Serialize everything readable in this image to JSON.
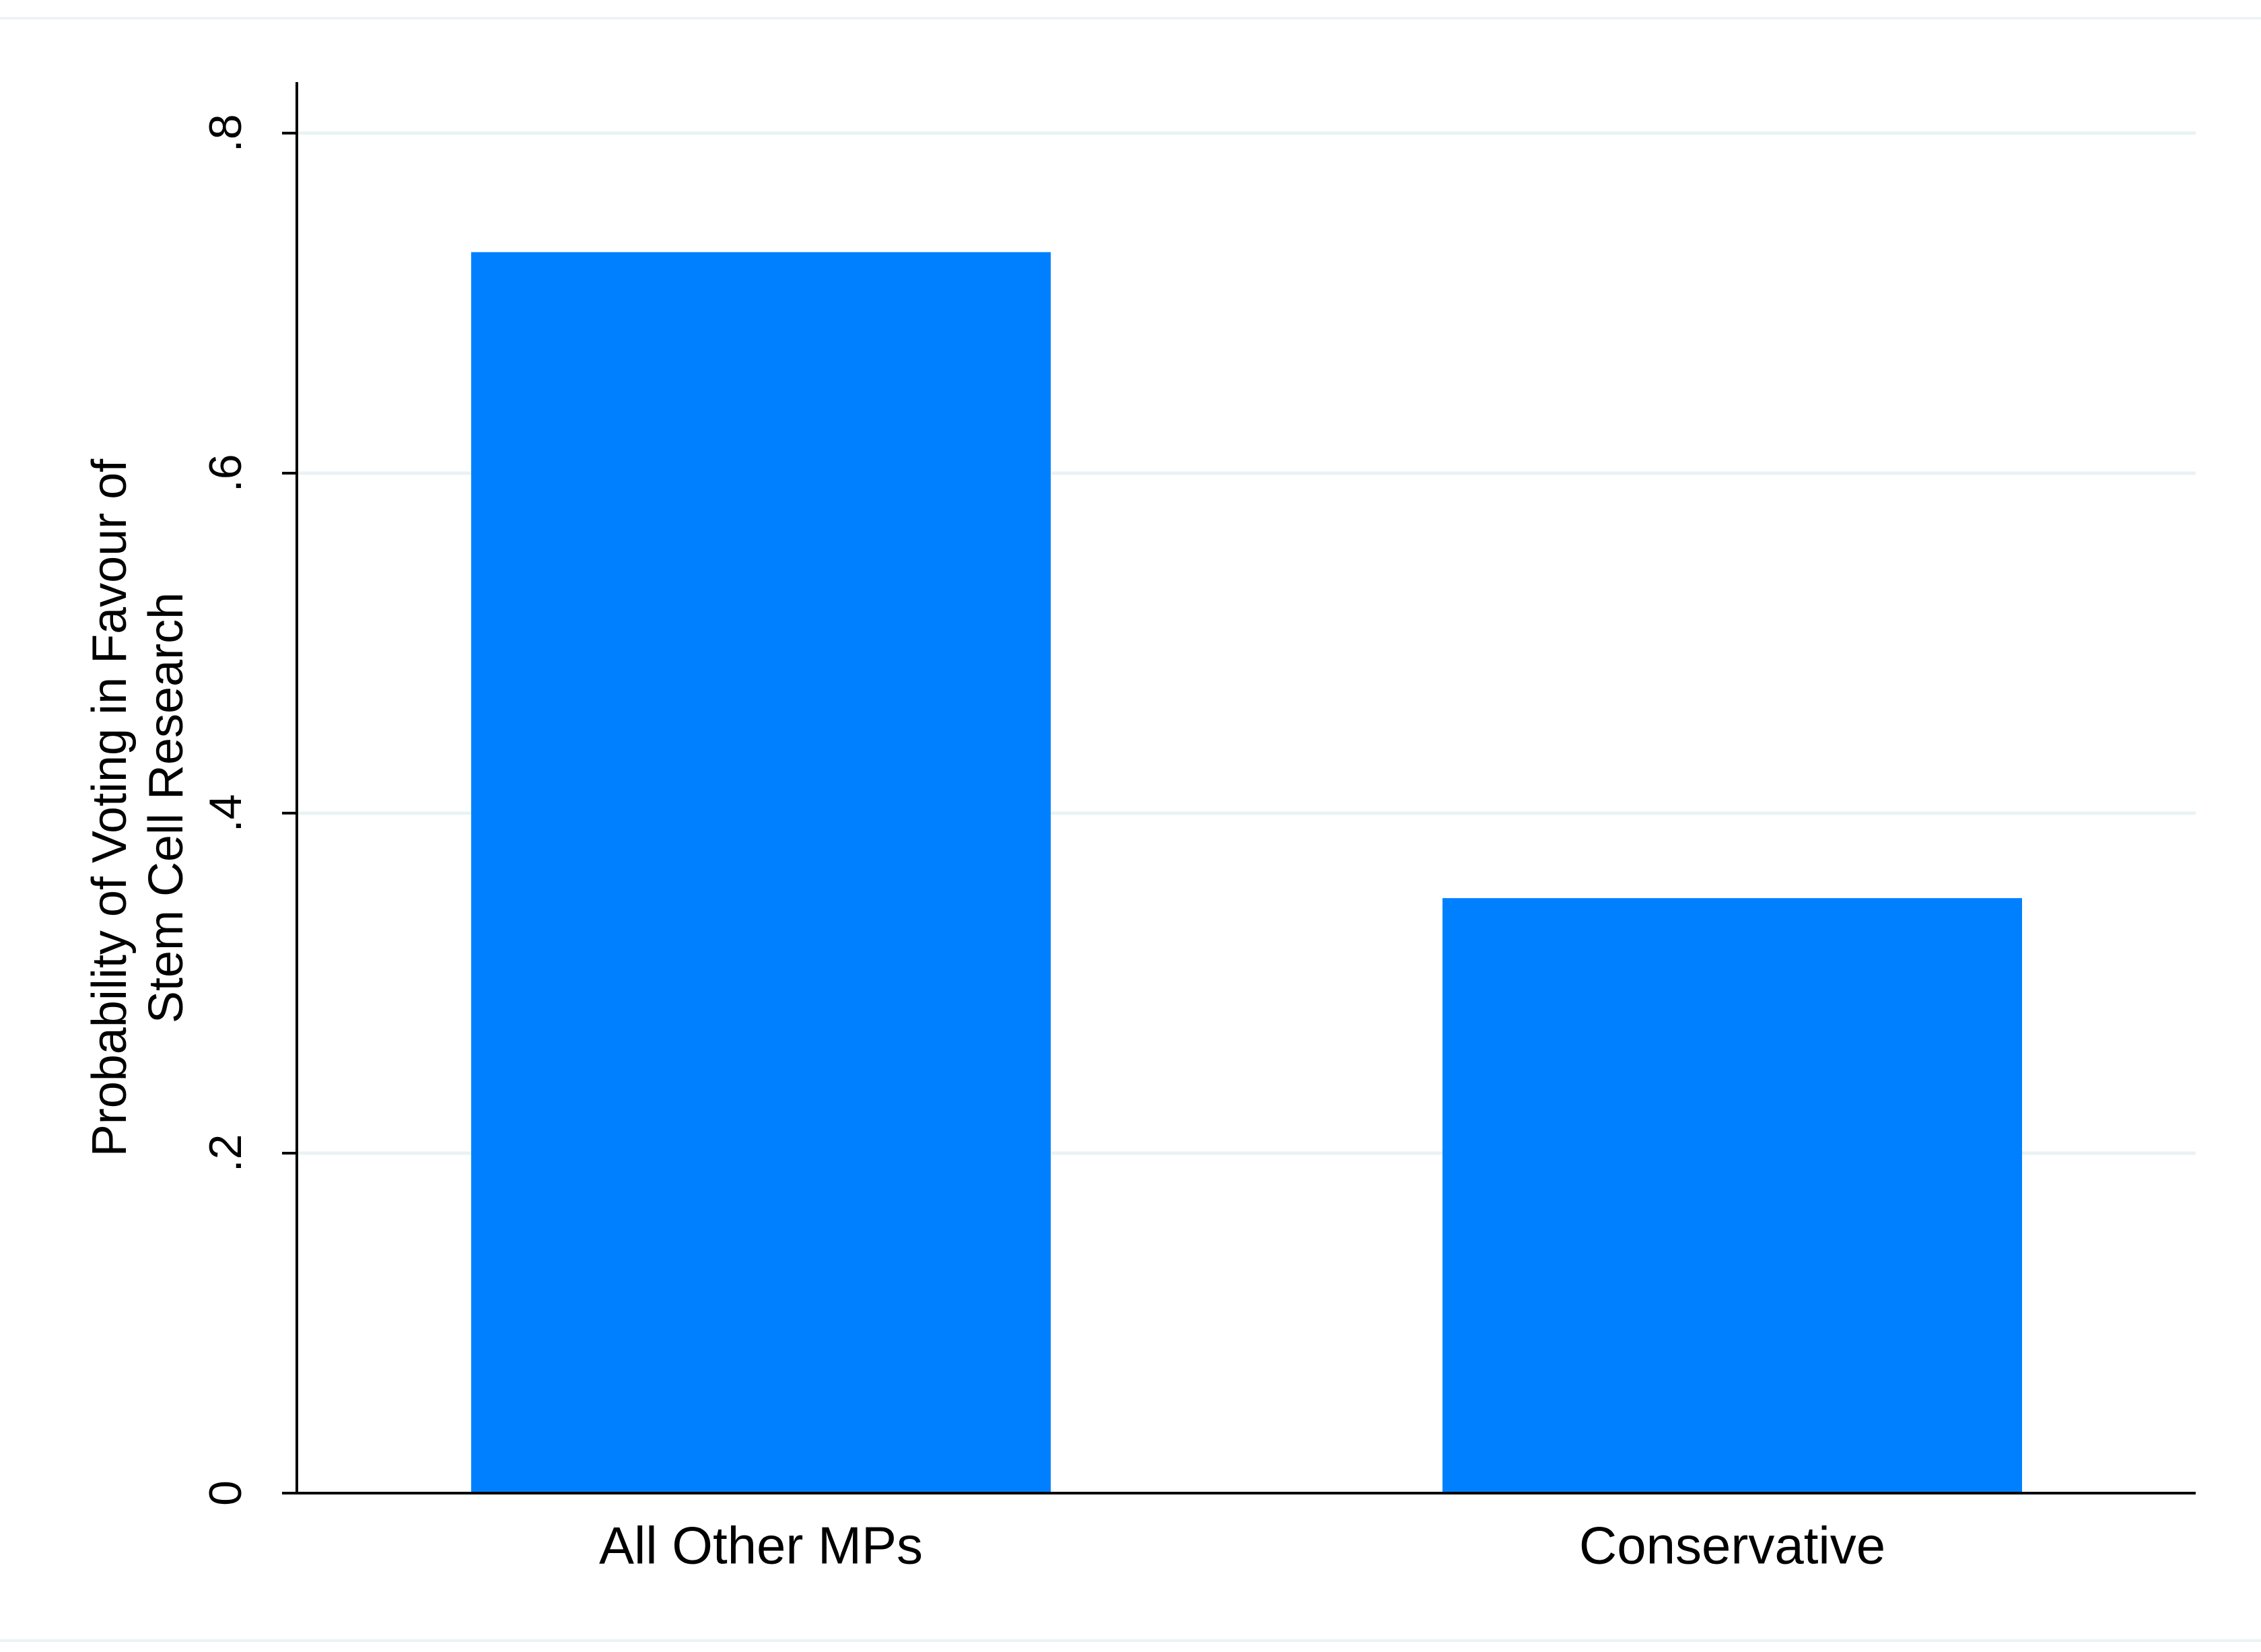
{
  "chart_data": {
    "type": "bar",
    "y_label": [
      "Probability of Voting in Favour of",
      "Stem Cell Research"
    ],
    "categories": [
      "All Other MPs",
      "Conservative"
    ],
    "values": [
      0.73,
      0.35
    ],
    "color": "#0080ff",
    "ylim": [
      0,
      0.83
    ],
    "yticks": [
      0,
      {
        "value": 0.2,
        "label": ".2"
      },
      {
        "value": 0.4,
        "label": ".4"
      },
      {
        "value": 0.6,
        "label": ".6"
      },
      {
        "value": 0.8,
        "label": ".8"
      }
    ],
    "grid": true
  }
}
